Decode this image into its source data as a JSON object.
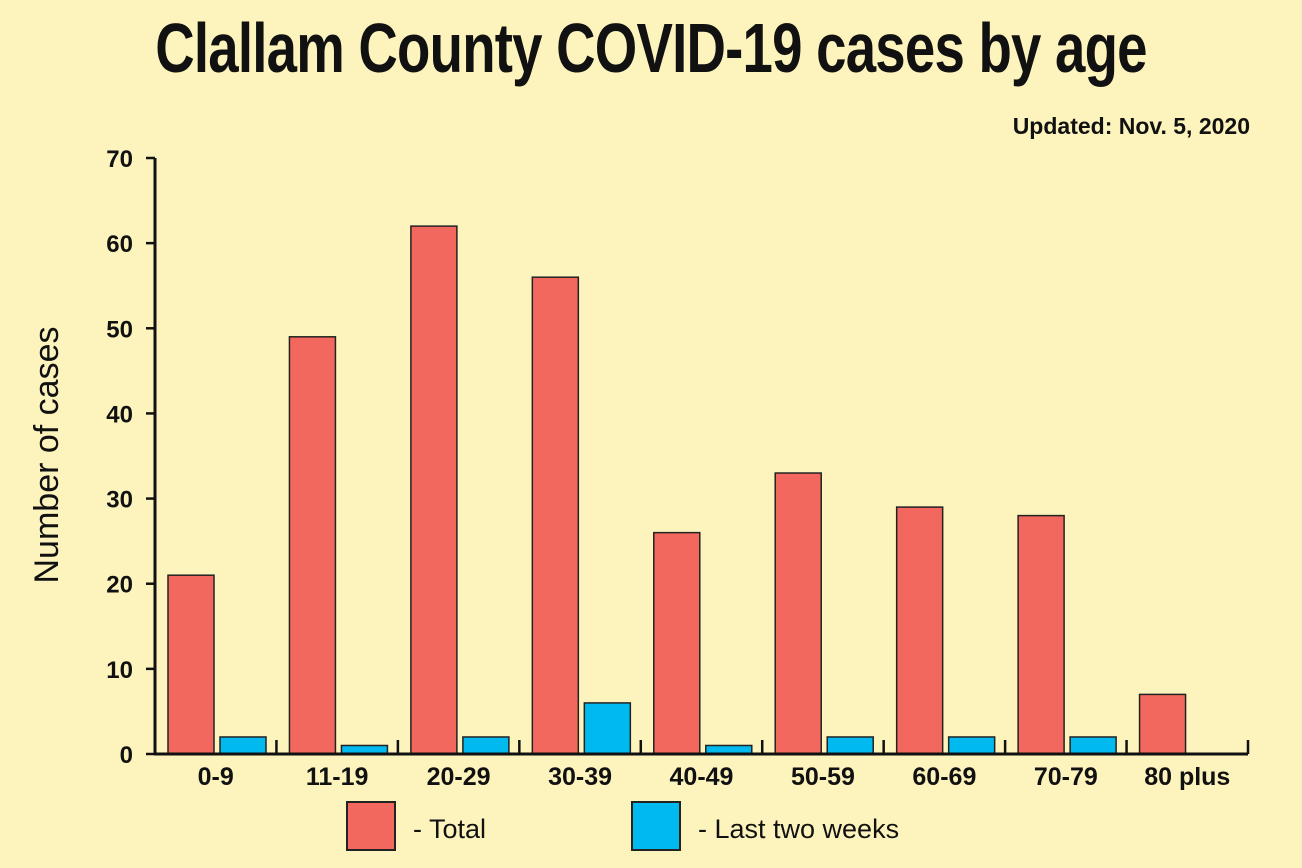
{
  "chart_data": {
    "type": "bar",
    "title": "Clallam County COVID-19 cases by age",
    "subtitle": "Updated: Nov. 5, 2020",
    "xlabel": "",
    "ylabel": "Number of cases",
    "ylim": [
      0,
      70
    ],
    "yticks": [
      "0",
      "10",
      "20",
      "30",
      "40",
      "50",
      "60",
      "70"
    ],
    "grid": false,
    "legend_placement": "bottom",
    "categories": [
      "0-9",
      "11-19",
      "20-29",
      "30-39",
      "40-49",
      "50-59",
      "60-69",
      "70-79",
      "80 plus"
    ],
    "series": [
      {
        "name": "- Total",
        "color": "#f2685e",
        "values": [
          21,
          49,
          62,
          56,
          26,
          33,
          29,
          28,
          7
        ]
      },
      {
        "name": "- Last two weeks",
        "color": "#00b9ee",
        "values": [
          2,
          1,
          2,
          6,
          1,
          2,
          2,
          2,
          0
        ]
      }
    ]
  }
}
